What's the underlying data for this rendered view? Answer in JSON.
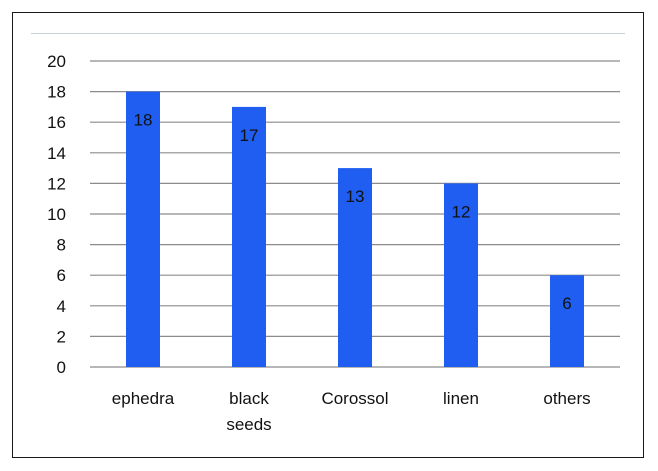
{
  "chart_data": {
    "type": "bar",
    "title": "",
    "xlabel": "",
    "ylabel": "",
    "categories": [
      [
        "ephedra"
      ],
      [
        "black",
        "seeds"
      ],
      [
        "Corossol"
      ],
      [
        "linen"
      ],
      [
        "others"
      ]
    ],
    "values": [
      18,
      17,
      13,
      12,
      6
    ],
    "ylim": [
      0,
      20
    ],
    "yticks": [
      0,
      2,
      4,
      6,
      8,
      10,
      12,
      14,
      16,
      18,
      20
    ],
    "grid": true,
    "data_labels": true,
    "colors": {
      "bar": "#1f5ef0",
      "grid": "#8c8c8c",
      "frame": "#1a1a1a"
    }
  }
}
